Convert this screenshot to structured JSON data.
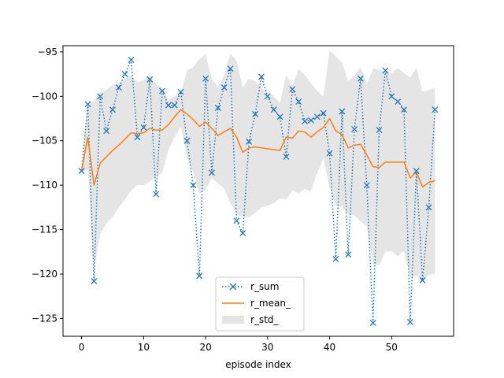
{
  "chart_data": {
    "type": "line",
    "title": "",
    "xlabel": "episode index",
    "ylabel": "",
    "xlim": [
      -3,
      60
    ],
    "ylim": [
      -127,
      -94.3
    ],
    "xticks": [
      0,
      10,
      20,
      30,
      40,
      50
    ],
    "yticks": [
      -95,
      -100,
      -105,
      -110,
      -115,
      -120,
      -125
    ],
    "xtick_labels": [
      "0",
      "10",
      "20",
      "30",
      "40",
      "50"
    ],
    "ytick_labels": [
      "−95",
      "−100",
      "−105",
      "−110",
      "−115",
      "−120",
      "−125"
    ],
    "grid": false,
    "legend_position": "lower-center",
    "x": [
      0,
      1,
      2,
      3,
      4,
      5,
      6,
      7,
      8,
      9,
      10,
      11,
      12,
      13,
      14,
      15,
      16,
      17,
      18,
      19,
      20,
      21,
      22,
      23,
      24,
      25,
      26,
      27,
      28,
      29,
      30,
      31,
      32,
      33,
      34,
      35,
      36,
      37,
      38,
      39,
      40,
      41,
      42,
      43,
      44,
      45,
      46,
      47,
      48,
      49,
      50,
      51,
      52,
      53,
      54,
      55,
      56,
      57
    ],
    "series": [
      {
        "name": "r_sum",
        "style": "dotted-x",
        "color": "#1f77b4",
        "values": [
          -108.4,
          -100.9,
          -120.8,
          -100.0,
          -103.9,
          -101.5,
          -99.0,
          -97.5,
          -95.9,
          -104.6,
          -103.5,
          -98.1,
          -111.0,
          -99.4,
          -101.0,
          -101.0,
          -99.5,
          -105.0,
          -110.0,
          -120.2,
          -98.0,
          -108.6,
          -101.3,
          -99.0,
          -96.9,
          -114.0,
          -115.4,
          -105.1,
          -102.0,
          -97.8,
          -100.0,
          -101.5,
          -102.3,
          -106.8,
          -99.2,
          -100.6,
          -102.8,
          -102.7,
          -102.3,
          -101.9,
          -106.4,
          -118.3,
          -101.7,
          -117.8,
          -103.7,
          -98.0,
          -110.0,
          -125.5,
          -103.8,
          -97.1,
          -100.0,
          -100.6,
          -101.5,
          -125.4,
          -108.4,
          -120.7,
          -112.5,
          -101.5
        ]
      },
      {
        "name": "r_mean_",
        "style": "solid",
        "color": "#ff7f0e",
        "values": [
          -108.4,
          -104.6,
          -110.0,
          -107.5,
          -106.8,
          -106.1,
          -105.5,
          -104.8,
          -104.1,
          -104.2,
          -104.1,
          -103.6,
          -103.8,
          -103.8,
          -103.2,
          -102.3,
          -101.5,
          -102.0,
          -102.6,
          -103.4,
          -102.9,
          -103.6,
          -104.4,
          -104.0,
          -103.6,
          -104.6,
          -106.3,
          -105.8,
          -105.7,
          -105.8,
          -105.9,
          -106.0,
          -106.1,
          -104.6,
          -104.7,
          -103.9,
          -104.0,
          -104.6,
          -104.0,
          -103.5,
          -102.5,
          -103.9,
          -104.3,
          -105.8,
          -105.5,
          -105.4,
          -106.6,
          -107.9,
          -108.0,
          -107.4,
          -107.4,
          -107.4,
          -107.4,
          -109.2,
          -108.5,
          -110.2,
          -109.7,
          -109.5
        ]
      }
    ],
    "bands": [
      {
        "name": "r_std_",
        "color": "#e5e5e5",
        "lower": [
          -108.4,
          -108.3,
          -119.4,
          -115.5,
          -114.3,
          -113.6,
          -112.5,
          -111.6,
          -110.6,
          -110.0,
          -110.0,
          -109.6,
          -109.0,
          -108.6,
          -106.0,
          -104.6,
          -103.4,
          -106.9,
          -108.5,
          -111.0,
          -110.5,
          -109.2,
          -109.8,
          -110.4,
          -112.0,
          -113.2,
          -113.6,
          -113.6,
          -113.1,
          -112.5,
          -112.3,
          -112.0,
          -111.5,
          -111.6,
          -110.6,
          -110.9,
          -110.4,
          -110.7,
          -108.6,
          -107.0,
          -110.2,
          -112.3,
          -112.4,
          -113.3,
          -113.4,
          -114.1,
          -114.6,
          -118.9,
          -119.0,
          -117.5,
          -117.4,
          -118.0,
          -117.4,
          -120.5,
          -120.2,
          -120.9,
          -120.1,
          -120.0
        ],
        "upper": [
          -108.4,
          -100.9,
          -100.6,
          -99.5,
          -99.3,
          -98.7,
          -98.5,
          -98.0,
          -97.6,
          -98.4,
          -98.2,
          -97.6,
          -98.6,
          -99.0,
          -100.4,
          -100.0,
          -99.6,
          -97.1,
          -96.7,
          -95.8,
          -95.3,
          -98.0,
          -99.0,
          -97.6,
          -95.2,
          -96.0,
          -99.0,
          -98.0,
          -98.3,
          -99.1,
          -99.5,
          -100.0,
          -100.7,
          -97.6,
          -98.8,
          -96.9,
          -97.6,
          -98.5,
          -99.4,
          -100.0,
          -94.8,
          -95.5,
          -96.2,
          -98.3,
          -97.6,
          -96.7,
          -98.6,
          -96.9,
          -97.0,
          -97.3,
          -97.4,
          -96.8,
          -97.4,
          -97.9,
          -96.8,
          -99.5,
          -99.3,
          -99.0
        ]
      }
    ]
  }
}
